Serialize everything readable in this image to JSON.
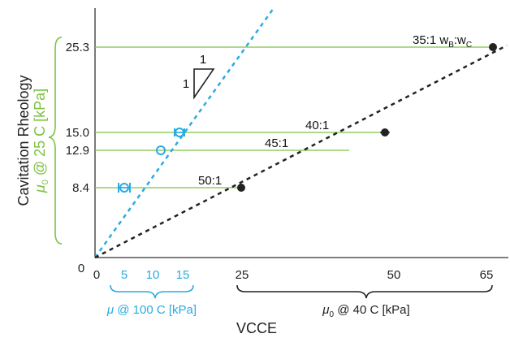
{
  "chart_data": {
    "type": "scatter",
    "xlabel": "VCCE",
    "ylabel": "Cavitation Rheology",
    "ylabel_sub": "μ0 @ 25 C [kPa]",
    "origin_label": "0",
    "y_ticks": [
      "25.3",
      "15.0",
      "12.9",
      "8.4"
    ],
    "x_axis_blue": {
      "label": "μ @ 100 C [kPa]",
      "ticks": [
        "0",
        "5",
        "10",
        "15"
      ],
      "range": [
        0,
        55
      ],
      "color": "#29abe2"
    },
    "x_axis_black": {
      "label": "μ0 @ 40 C [kPa]",
      "ticks": [
        "25",
        "50",
        "65"
      ],
      "color": "#222222"
    },
    "ylim": [
      0,
      37
    ],
    "reference_color": "#7dc242",
    "triangle_labels": {
      "top": "1",
      "left": "1"
    },
    "series": [
      {
        "color": "#29abe2",
        "marker": "open-circle",
        "points": [
          {
            "x": 5.0,
            "y": 8.4
          },
          {
            "x": 11.3,
            "y": 12.9
          },
          {
            "x": 14.3,
            "y": 15.0
          }
        ]
      },
      {
        "color": "#222222",
        "marker": "filled-circle",
        "points": [
          {
            "x": 24.0,
            "y": 8.4,
            "label": "50:1"
          },
          {
            "x": 49.0,
            "y": 15.0,
            "label": "40:1"
          },
          {
            "x": 66.0,
            "y": 25.3,
            "label": "35:1 wB:wC"
          }
        ],
        "point_labels_shown": [
          "50:1",
          "45:1",
          "40:1",
          "35:1 wB:wC"
        ]
      }
    ]
  }
}
